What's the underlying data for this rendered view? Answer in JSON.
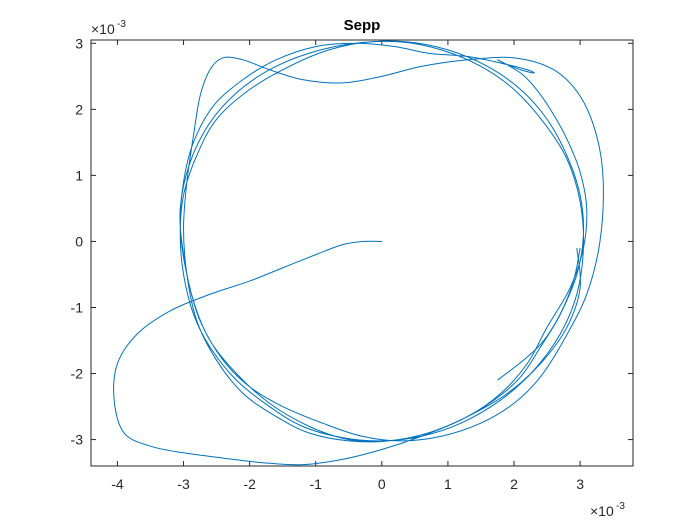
{
  "chart_data": {
    "type": "line",
    "title": "Sepp",
    "xlabel": "",
    "ylabel": "",
    "x_exponent_label": {
      "base": "×10",
      "exp": "-3"
    },
    "y_exponent_label": {
      "base": "×10",
      "exp": "-3"
    },
    "xlim": [
      -4.4,
      3.8
    ],
    "ylim": [
      -3.4,
      3.05
    ],
    "x_ticks": [
      -4,
      -3,
      -2,
      -1,
      0,
      1,
      2,
      3
    ],
    "y_ticks": [
      -3,
      -2,
      -1,
      0,
      1,
      2,
      3
    ],
    "x_tick_labels": [
      "-4",
      "-3",
      "-2",
      "-1",
      "0",
      "1",
      "2",
      "3"
    ],
    "y_tick_labels": [
      "-3",
      "-2",
      "-1",
      "0",
      "1",
      "2",
      "3"
    ],
    "grid": false,
    "line_color": "#0072BD",
    "series": [
      {
        "x": [
          0,
          -0.3,
          -0.6,
          -1.0,
          -1.5,
          -2.0,
          -2.6,
          -3.2,
          -3.7,
          -4.0,
          -4.05,
          -3.9,
          -3.5,
          -3.0,
          -2.4,
          -1.8,
          -1.2,
          -0.6,
          0,
          0.6,
          1.2,
          1.7,
          2.1,
          2.4,
          2.7,
          2.95,
          3.05,
          3.0,
          2.8,
          2.5,
          2.1,
          1.6,
          1.0,
          0.4,
          -0.2,
          -0.8,
          -1.4,
          -2.0,
          -2.5,
          -2.8,
          -3.0,
          -3.05,
          -3.0,
          -2.85,
          -2.6,
          -2.2,
          -1.7,
          -1.2,
          -0.6,
          0,
          0.6,
          1.2,
          1.8,
          2.3,
          2.7,
          2.95,
          3.05,
          3.0,
          2.8,
          2.45,
          2.0,
          1.5,
          0.9,
          0.3,
          -0.4,
          -1.1,
          -1.7,
          -2.2,
          -2.6,
          -2.9,
          -3.05,
          -3.0,
          -2.85,
          -2.6,
          -2.2,
          -1.7,
          -1.1,
          -0.5,
          0.1,
          0.7,
          1.3,
          1.8,
          2.2,
          2.5,
          2.85,
          3.05,
          3.1,
          3.0,
          2.8,
          2.55,
          2.3,
          2.1,
          1.85,
          1.75,
          1.85,
          2.1,
          2.3,
          2.2,
          1.8,
          1.3,
          0.7,
          0.2,
          -0.4,
          -1.0,
          -1.6,
          -2.1,
          -2.55,
          -2.85,
          -3.0,
          -3.05,
          -2.95,
          -2.75,
          -2.4,
          -2.0,
          -1.5,
          -0.9,
          -0.3,
          0.3,
          0.9,
          1.5,
          2.0,
          2.4,
          2.75,
          3.1,
          3.3,
          3.35,
          3.25,
          3.0,
          2.6,
          2.0,
          1.3,
          0.6,
          0,
          -0.6,
          -1.2,
          -1.7,
          -2.1,
          -2.4,
          -2.6,
          -2.75,
          -2.85,
          -2.95,
          -3.0,
          -2.95,
          -2.8,
          -2.5,
          -2.1,
          -1.6,
          -1.1,
          -0.5,
          0.1,
          0.7,
          1.3,
          1.9,
          2.4,
          2.8,
          3.0,
          2.95
        ],
        "y": [
          0,
          0,
          -0.05,
          -0.2,
          -0.4,
          -0.6,
          -0.8,
          -1.05,
          -1.4,
          -1.85,
          -2.4,
          -2.9,
          -3.1,
          -3.2,
          -3.28,
          -3.35,
          -3.38,
          -3.3,
          -3.15,
          -2.95,
          -2.7,
          -2.4,
          -2.05,
          -1.6,
          -1.1,
          -0.5,
          0.1,
          0.7,
          1.3,
          1.85,
          2.3,
          2.65,
          2.9,
          3.02,
          3.02,
          2.9,
          2.65,
          2.3,
          1.85,
          1.3,
          0.7,
          0.1,
          -0.5,
          -1.1,
          -1.6,
          -2.1,
          -2.5,
          -2.8,
          -2.97,
          -3.02,
          -2.95,
          -2.75,
          -2.4,
          -1.95,
          -1.4,
          -0.8,
          -0.1,
          0.6,
          1.25,
          1.8,
          2.3,
          2.65,
          2.9,
          3.02,
          3.0,
          2.85,
          2.6,
          2.25,
          1.8,
          1.2,
          0.5,
          -0.2,
          -0.9,
          -1.5,
          -2.0,
          -2.45,
          -2.8,
          -3.0,
          -3.02,
          -2.9,
          -2.65,
          -2.3,
          -1.85,
          -1.3,
          -0.7,
          -0.1,
          0.5,
          1.05,
          1.55,
          2.0,
          2.35,
          2.55,
          2.7,
          2.75,
          2.7,
          2.6,
          2.55,
          2.6,
          2.7,
          2.8,
          2.85,
          2.95,
          3.0,
          2.95,
          2.75,
          2.45,
          2.05,
          1.5,
          0.9,
          0.2,
          -0.5,
          -1.2,
          -1.8,
          -2.2,
          -2.5,
          -2.75,
          -2.95,
          -3.02,
          -2.95,
          -2.75,
          -2.45,
          -2.05,
          -1.5,
          -0.8,
          0,
          0.9,
          1.6,
          2.2,
          2.6,
          2.78,
          2.75,
          2.65,
          2.5,
          2.4,
          2.45,
          2.6,
          2.75,
          2.78,
          2.6,
          2.2,
          1.6,
          0.9,
          0.2,
          -0.5,
          -1.2,
          -1.8,
          -2.3,
          -2.65,
          -2.9,
          -3.02,
          -3.02,
          -2.9,
          -2.65,
          -2.3,
          -1.85,
          -1.3,
          -0.7,
          -0.1
        ],
        "x_tail": [
          1.75,
          1.95,
          2.2,
          2.45,
          2.7,
          2.9,
          3.0
        ],
        "y_tail": [
          -2.1,
          -1.95,
          -1.75,
          -1.5,
          -1.1,
          -0.6,
          -0.1
        ]
      }
    ]
  }
}
